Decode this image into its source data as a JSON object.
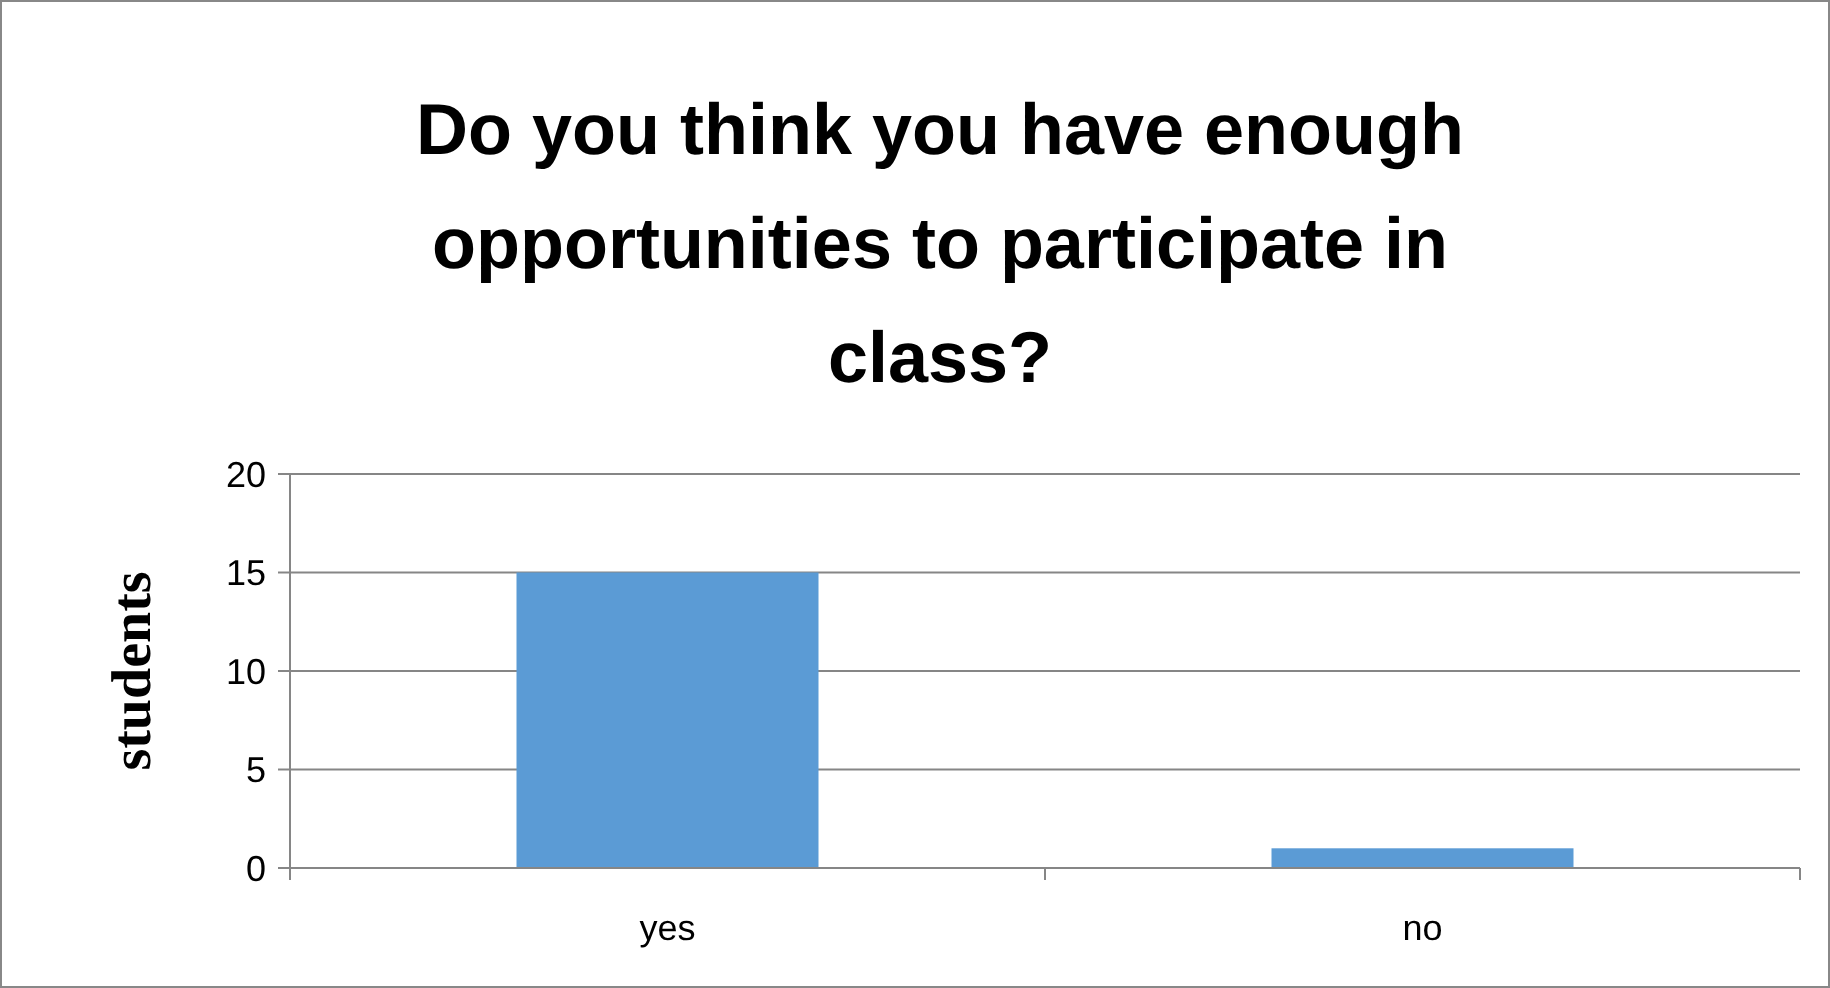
{
  "chart_data": {
    "type": "bar",
    "title": "Do you think you have enough opportunities to participate in class?",
    "ylabel": "students",
    "categories": [
      "yes",
      "no"
    ],
    "values": [
      15,
      1
    ],
    "color": "#5b9bd5",
    "ylim": [
      0,
      20
    ],
    "yticks": [
      0,
      5,
      10,
      15,
      20
    ],
    "grid": "y"
  }
}
